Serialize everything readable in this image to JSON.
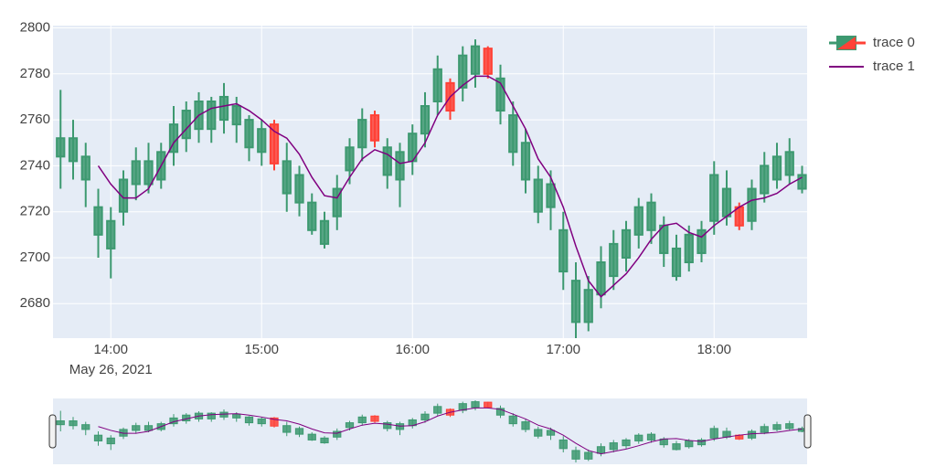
{
  "chart_data": {
    "type": "candlestick",
    "x": [
      "2021-05-26 13:40",
      "2021-05-26 13:45",
      "2021-05-26 13:50",
      "2021-05-26 13:55",
      "2021-05-26 14:00",
      "2021-05-26 14:05",
      "2021-05-26 14:10",
      "2021-05-26 14:15",
      "2021-05-26 14:20",
      "2021-05-26 14:25",
      "2021-05-26 14:30",
      "2021-05-26 14:35",
      "2021-05-26 14:40",
      "2021-05-26 14:45",
      "2021-05-26 14:50",
      "2021-05-26 14:55",
      "2021-05-26 15:00",
      "2021-05-26 15:05",
      "2021-05-26 15:10",
      "2021-05-26 15:15",
      "2021-05-26 15:20",
      "2021-05-26 15:25",
      "2021-05-26 15:30",
      "2021-05-26 15:35",
      "2021-05-26 15:40",
      "2021-05-26 15:45",
      "2021-05-26 15:50",
      "2021-05-26 15:55",
      "2021-05-26 16:00",
      "2021-05-26 16:05",
      "2021-05-26 16:10",
      "2021-05-26 16:15",
      "2021-05-26 16:20",
      "2021-05-26 16:25",
      "2021-05-26 16:30",
      "2021-05-26 16:35",
      "2021-05-26 16:40",
      "2021-05-26 16:45",
      "2021-05-26 16:50",
      "2021-05-26 16:55",
      "2021-05-26 17:00",
      "2021-05-26 17:05",
      "2021-05-26 17:10",
      "2021-05-26 17:15",
      "2021-05-26 17:20",
      "2021-05-26 17:25",
      "2021-05-26 17:30",
      "2021-05-26 17:35",
      "2021-05-26 17:40",
      "2021-05-26 17:45",
      "2021-05-26 17:50",
      "2021-05-26 17:55",
      "2021-05-26 18:00",
      "2021-05-26 18:05",
      "2021-05-26 18:10",
      "2021-05-26 18:15",
      "2021-05-26 18:20",
      "2021-05-26 18:25",
      "2021-05-26 18:30",
      "2021-05-26 18:35"
    ],
    "series": [
      {
        "name": "trace 0",
        "type": "candlestick",
        "increasing_color": "#3d9970",
        "decreasing_color": "#ff4136",
        "open": [
          2744,
          2742,
          2734,
          2710,
          2704,
          2720,
          2732,
          2732,
          2734,
          2746,
          2752,
          2756,
          2756,
          2760,
          2758,
          2748,
          2746,
          2758,
          2728,
          2724,
          2712,
          2706,
          2718,
          2738,
          2748,
          2762,
          2736,
          2734,
          2742,
          2754,
          2768,
          2776,
          2774,
          2780,
          2791,
          2764,
          2746,
          2734,
          2720,
          2722,
          2694,
          2672,
          2672,
          2684,
          2692,
          2700,
          2710,
          2712,
          2702,
          2692,
          2698,
          2702,
          2716,
          2718,
          2722,
          2716,
          2728,
          2734,
          2736,
          2730
        ],
        "high": [
          2773,
          2760,
          2750,
          2730,
          2722,
          2738,
          2748,
          2750,
          2750,
          2766,
          2768,
          2772,
          2770,
          2776,
          2770,
          2762,
          2760,
          2760,
          2750,
          2740,
          2728,
          2720,
          2736,
          2752,
          2765,
          2764,
          2752,
          2750,
          2758,
          2772,
          2788,
          2778,
          2792,
          2795,
          2792,
          2784,
          2768,
          2756,
          2740,
          2738,
          2720,
          2698,
          2692,
          2705,
          2712,
          2716,
          2726,
          2728,
          2718,
          2710,
          2714,
          2716,
          2742,
          2738,
          2724,
          2734,
          2746,
          2750,
          2752,
          2740
        ],
        "low": [
          2730,
          2734,
          2722,
          2700,
          2691,
          2714,
          2725,
          2728,
          2730,
          2740,
          2746,
          2750,
          2750,
          2754,
          2750,
          2742,
          2740,
          2738,
          2720,
          2718,
          2710,
          2704,
          2712,
          2732,
          2742,
          2748,
          2730,
          2722,
          2736,
          2748,
          2762,
          2760,
          2768,
          2774,
          2778,
          2758,
          2740,
          2728,
          2715,
          2712,
          2686,
          2665,
          2668,
          2678,
          2686,
          2694,
          2704,
          2706,
          2696,
          2690,
          2694,
          2698,
          2710,
          2714,
          2712,
          2712,
          2724,
          2730,
          2732,
          2728
        ],
        "close": [
          2752,
          2752,
          2744,
          2722,
          2716,
          2734,
          2742,
          2742,
          2746,
          2758,
          2764,
          2768,
          2768,
          2770,
          2766,
          2760,
          2756,
          2741,
          2742,
          2736,
          2724,
          2716,
          2730,
          2748,
          2760,
          2751,
          2748,
          2746,
          2754,
          2766,
          2782,
          2764,
          2788,
          2792,
          2780,
          2778,
          2762,
          2750,
          2734,
          2732,
          2712,
          2690,
          2686,
          2698,
          2706,
          2712,
          2722,
          2724,
          2714,
          2704,
          2710,
          2712,
          2736,
          2730,
          2714,
          2730,
          2740,
          2744,
          2746,
          2736
        ]
      },
      {
        "name": "trace 1",
        "type": "line",
        "color": "#800080",
        "values": [
          null,
          null,
          null,
          2740,
          2732,
          2726,
          2726,
          2730,
          2740,
          2750,
          2756,
          2762,
          2765,
          2766,
          2767,
          2764,
          2760,
          2755,
          2752,
          2745,
          2735,
          2727,
          2726,
          2735,
          2743,
          2747,
          2745,
          2741,
          2742,
          2750,
          2762,
          2770,
          2775,
          2779,
          2779,
          2776,
          2766,
          2756,
          2743,
          2735,
          2722,
          2705,
          2690,
          2683,
          2688,
          2693,
          2700,
          2708,
          2714,
          2715,
          2711,
          2709,
          2714,
          2718,
          2722,
          2725,
          2726,
          2728,
          2732,
          2735
        ]
      }
    ],
    "xlim": [
      "2021-05-26 13:37",
      "2021-05-26 18:37"
    ],
    "xticks": [
      {
        "value": "2021-05-26 14:00",
        "label": "14:00"
      },
      {
        "value": "2021-05-26 15:00",
        "label": "15:00"
      },
      {
        "value": "2021-05-26 16:00",
        "label": "16:00"
      },
      {
        "value": "2021-05-26 17:00",
        "label": "17:00"
      },
      {
        "value": "2021-05-26 18:00",
        "label": "18:00"
      }
    ],
    "x_date_label": "May 26, 2021",
    "ylim": [
      2665,
      2801
    ],
    "yticks": [
      2680,
      2700,
      2720,
      2740,
      2760,
      2780,
      2800
    ],
    "grid": true,
    "legend_position": "right",
    "rangeslider": true
  }
}
